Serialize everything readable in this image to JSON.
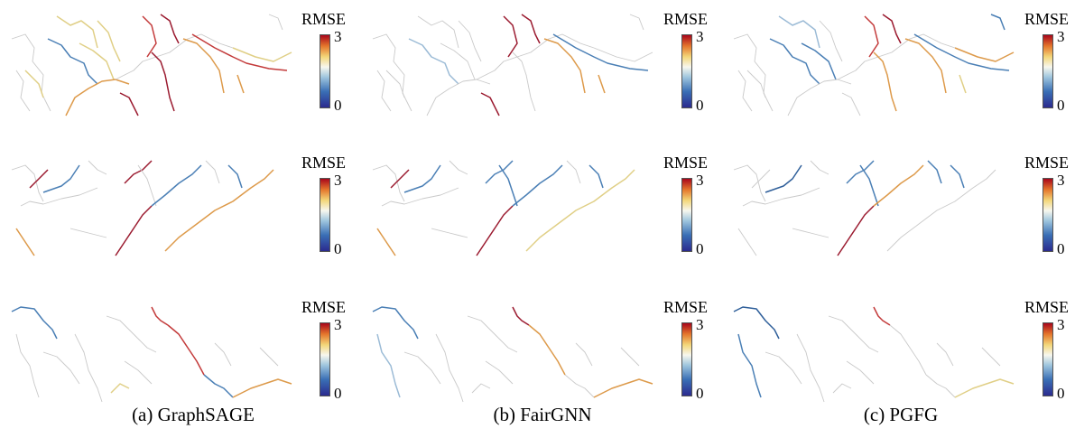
{
  "colorbar": {
    "title": "RMSE",
    "max_label": "3",
    "min_label": "0",
    "range": [
      0,
      3
    ],
    "colors": [
      "#2b2b8f",
      "#3a6fb5",
      "#9fc6de",
      "#f7f7ee",
      "#f3d77a",
      "#e4762c",
      "#a8061b"
    ]
  },
  "captions": [
    {
      "text": "(a) GraphSAGE"
    },
    {
      "text": "(b) FairGNN"
    },
    {
      "text": "(c) PGFG"
    }
  ]
}
